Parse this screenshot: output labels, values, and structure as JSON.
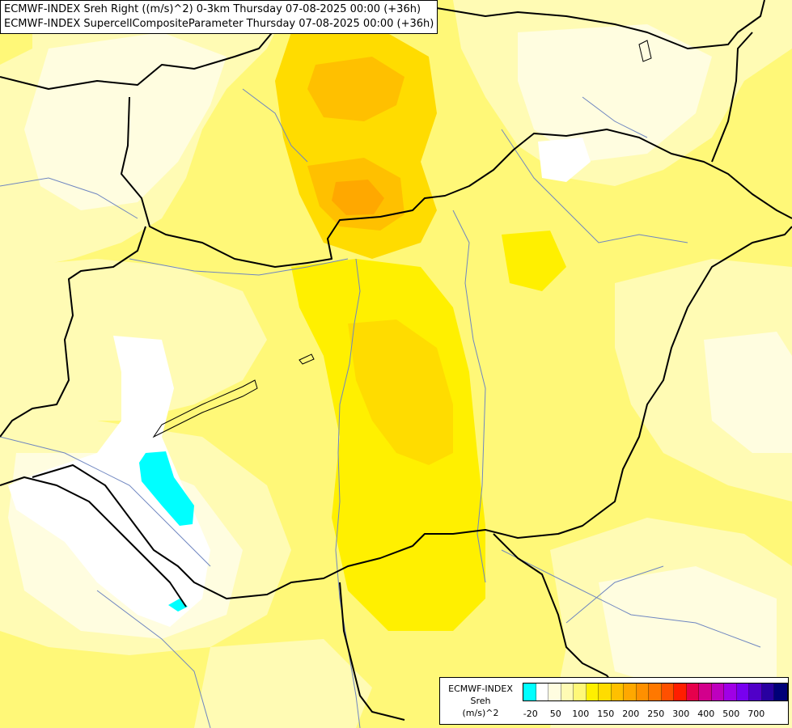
{
  "header": {
    "line1": "ECMWF-INDEX Sreh Right ((m/s)^2) 0-3km Thursday 07-08-2025 00:00 (+36h)",
    "line2": "ECMWF-INDEX SupercellCompositeParameter Thursday 07-08-2025 00:00 (+36h)"
  },
  "legend": {
    "title": "ECMWF-INDEX",
    "variable": "Sreh",
    "unit": "(m/s)^2",
    "colors": [
      "#00ffff",
      "#ffffff",
      "#fffde0",
      "#fffbb4",
      "#fff878",
      "#fff000",
      "#ffdc00",
      "#ffc000",
      "#ffa800",
      "#ff9000",
      "#ff7800",
      "#ff5000",
      "#ff1e00",
      "#e6004c",
      "#d2008c",
      "#be00be",
      "#a000e6",
      "#7800f0",
      "#5000c8",
      "#2800a0",
      "#000078"
    ],
    "ticks": [
      {
        "label": "-20",
        "index": 0.5
      },
      {
        "label": "50",
        "index": 2.5
      },
      {
        "label": "100",
        "index": 4.5
      },
      {
        "label": "150",
        "index": 6.5
      },
      {
        "label": "200",
        "index": 8.5
      },
      {
        "label": "250",
        "index": 10.5
      },
      {
        "label": "300",
        "index": 12.5
      },
      {
        "label": "400",
        "index": 14.5
      },
      {
        "label": "500",
        "index": 16.5
      },
      {
        "label": "700",
        "index": 18.5
      }
    ]
  },
  "map": {
    "colors": {
      "pale": "#fffde0",
      "light": "#fffbb4",
      "yellow": "#fff878",
      "bright": "#fff000",
      "gold": "#ffdc00",
      "orange": "#ffc000",
      "deep_orange": "#ffa800",
      "white": "#ffffff",
      "cyan": "#00ffff",
      "border": "#000000",
      "river": "#6f86c0"
    }
  }
}
